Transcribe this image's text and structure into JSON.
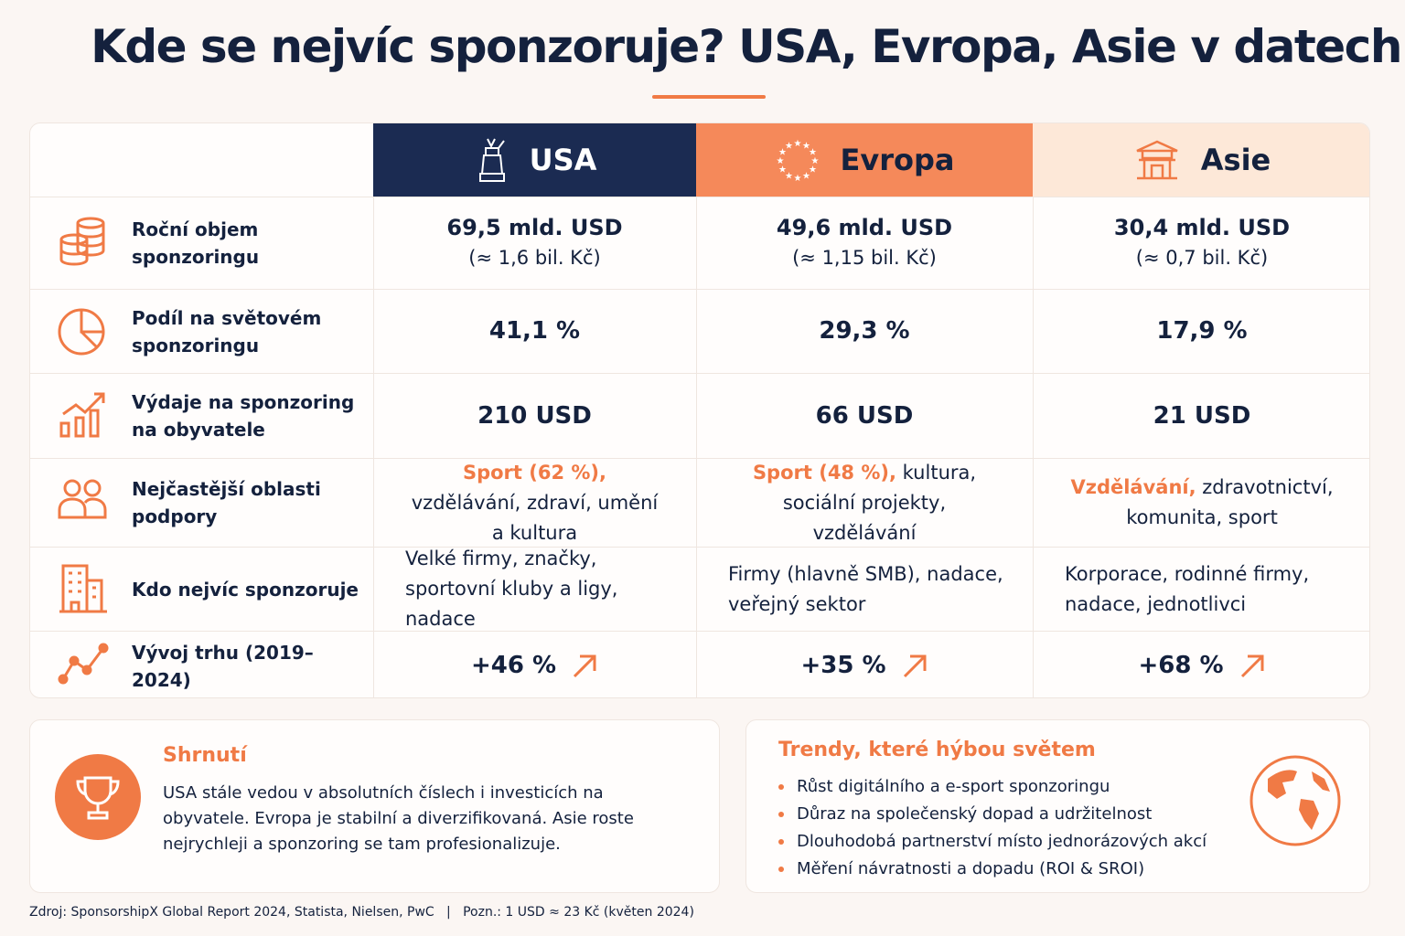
{
  "title": "Kde se nejvíc sponzoruje? USA, Evropa, Asie v datech",
  "table": {
    "columns": [
      "USA",
      "Evropa",
      "Asie"
    ],
    "rows": [
      {
        "label": "Roční objem sponzoringu",
        "cells": [
          {
            "main": "69,5 mld. USD",
            "sub": "(≈ 1,6 bil. Kč)"
          },
          {
            "main": "49,6 mld. USD",
            "sub": "(≈ 1,15 bil. Kč)"
          },
          {
            "main": "30,4 mld. USD",
            "sub": "(≈ 0,7 bil. Kč)"
          }
        ]
      },
      {
        "label": "Podíl na světovém sponzoringu",
        "cells": [
          {
            "main": "41,1 %"
          },
          {
            "main": "29,3 %"
          },
          {
            "main": "17,9 %"
          }
        ]
      },
      {
        "label": "Výdaje na sponzoring na obyvatele",
        "cells": [
          {
            "main": "210 USD"
          },
          {
            "main": "66 USD"
          },
          {
            "main": "21 USD"
          }
        ]
      },
      {
        "label": "Nejčastější oblasti podpory",
        "cells": [
          {
            "highlight": "Sport (62 %),",
            "text": "vzdělávání, zdraví, umění a kultura"
          },
          {
            "highlight": "Sport (48 %),",
            "text": "kultura, sociální projekty, vzdělávání"
          },
          {
            "highlight": "Vzdělávání,",
            "text": "zdravotnictví, komunita, sport"
          }
        ]
      },
      {
        "label": "Kdo nejvíc sponzoruje",
        "cells": [
          {
            "text": "Velké firmy, značky, sportovní kluby a ligy, nadace"
          },
          {
            "text": "Firmy (hlavně SMB), nadace, veřejný sektor"
          },
          {
            "text": "Korporace, rodinné firmy, nadace, jednotlivci"
          }
        ]
      },
      {
        "label": "Vývoj trhu (2019–2024)",
        "cells": [
          {
            "trend": "+46 %"
          },
          {
            "trend": "+35 %"
          },
          {
            "trend": "+68 %"
          }
        ]
      }
    ]
  },
  "summary": {
    "title": "Shrnutí",
    "text": "USA stále vedou v absolutních číslech i investicích na obyvatele. Evropa je stabilní a diverzifikovaná. Asie roste nejrychleji a sponzoring se tam profesionalizuje."
  },
  "trends": {
    "title": "Trendy, které hýbou světem",
    "items": [
      "Růst digitálního a e-sport sponzoringu",
      "Důraz na společenský dopad a udržitelnost",
      "Dlouhodobá partnerství místo jednorázových akcí",
      "Měření návratnosti a dopadu (ROI & SROI)"
    ]
  },
  "footer": "Zdroj: SponsorshipX Global Report 2024, Statista, Nielsen, PwC   |   Pozn.: 1 USD ≈ 23 Kč (květen 2024)"
}
